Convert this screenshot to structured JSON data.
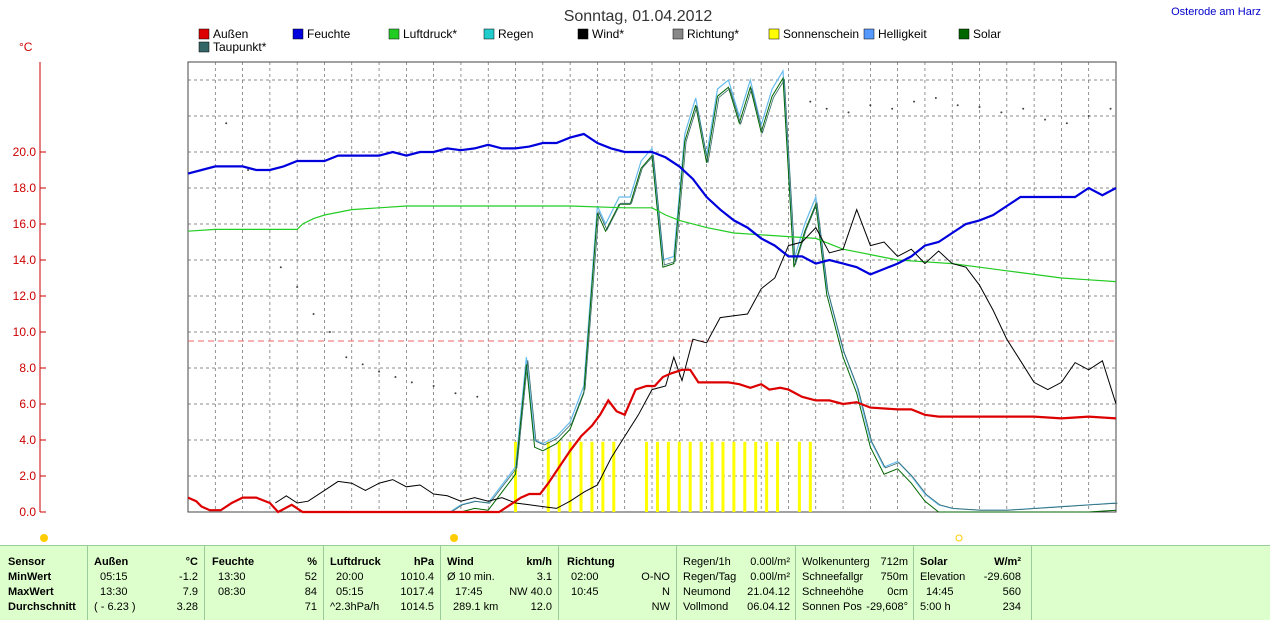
{
  "header": {
    "title": "Sonntag, 01.04.2012",
    "location": "Osterode am Harz"
  },
  "chart_data": {
    "type": "line",
    "title": "Sonntag, 01.04.2012",
    "yunit": "°C",
    "ylim": [
      0,
      25
    ],
    "xlim": [
      0,
      24
    ],
    "yticks": [
      "0.0",
      "2.0",
      "4.0",
      "6.0",
      "8.0",
      "10.0",
      "12.0",
      "14.0",
      "16.0",
      "18.0",
      "20.0"
    ],
    "grid": true,
    "legend_position": "top",
    "threshold_line": 9.5,
    "series": [
      {
        "name": "Außen",
        "color": "#dd0000",
        "points": [
          [
            0,
            0.8
          ],
          [
            0.3,
            0.6
          ],
          [
            0.5,
            0.3
          ],
          [
            0.8,
            0.1
          ],
          [
            1.2,
            0.1
          ],
          [
            1.6,
            0.5
          ],
          [
            2,
            0.8
          ],
          [
            2.5,
            0.8
          ],
          [
            3,
            0.5
          ],
          [
            3.3,
            0
          ],
          [
            3.8,
            0.4
          ],
          [
            4.2,
            0
          ],
          [
            7.5,
            0
          ],
          [
            8,
            0
          ],
          [
            8.5,
            0
          ],
          [
            9,
            0
          ],
          [
            9.5,
            0
          ],
          [
            10,
            0
          ],
          [
            10.5,
            0
          ],
          [
            11,
            0
          ],
          [
            11.4,
            0
          ],
          [
            11.8,
            0.4
          ],
          [
            12.2,
            0.8
          ],
          [
            12.5,
            1
          ],
          [
            12.9,
            1
          ],
          [
            13.2,
            1.6
          ],
          [
            13.6,
            2.5
          ],
          [
            14,
            3.4
          ],
          [
            14.4,
            4.2
          ],
          [
            14.8,
            4.8
          ],
          [
            15.1,
            5.4
          ],
          [
            15.4,
            6.2
          ],
          [
            15.7,
            5.6
          ],
          [
            16,
            5.4
          ],
          [
            16.4,
            6.8
          ],
          [
            16.8,
            7
          ],
          [
            17.1,
            7
          ],
          [
            17.4,
            7.5
          ],
          [
            17.7,
            7.7
          ],
          [
            18.1,
            7.9
          ],
          [
            18.4,
            7.9
          ],
          [
            18.7,
            7.2
          ],
          [
            19.2,
            7.2
          ],
          [
            19.8,
            7.2
          ],
          [
            20.2,
            7.1
          ],
          [
            20.6,
            6.9
          ],
          [
            21,
            7.1
          ],
          [
            21.3,
            6.8
          ],
          [
            21.7,
            6.9
          ],
          [
            22,
            6.8
          ],
          [
            22.5,
            6.4
          ],
          [
            23,
            6.2
          ],
          [
            23.5,
            6.2
          ],
          [
            24,
            6.0
          ]
        ],
        "points2": [
          [
            24,
            6.0
          ],
          [
            24.5,
            6.1
          ],
          [
            25,
            5.8
          ],
          [
            26,
            5.7
          ],
          [
            26.5,
            5.7
          ],
          [
            27,
            5.4
          ],
          [
            27.5,
            5.3
          ],
          [
            28,
            5.3
          ],
          [
            29,
            5.3
          ],
          [
            30,
            5.3
          ],
          [
            31,
            5.3
          ],
          [
            32,
            5.2
          ],
          [
            33,
            5.3
          ],
          [
            34,
            5.2
          ]
        ]
      },
      {
        "name": "Feuchte",
        "color": "#0000dd",
        "points": [
          [
            0,
            18.8
          ],
          [
            0.5,
            19
          ],
          [
            1,
            19.2
          ],
          [
            2,
            19.2
          ],
          [
            2.5,
            19
          ],
          [
            3,
            19
          ],
          [
            3.5,
            19.2
          ],
          [
            4,
            19.5
          ],
          [
            4.5,
            19.5
          ],
          [
            5,
            19.5
          ],
          [
            5.5,
            19.8
          ],
          [
            6,
            19.8
          ],
          [
            6.5,
            19.8
          ],
          [
            7,
            19.8
          ],
          [
            7.5,
            20
          ],
          [
            8,
            19.8
          ],
          [
            8.5,
            20
          ],
          [
            9,
            20
          ],
          [
            9.5,
            20.2
          ],
          [
            10,
            20.1
          ],
          [
            10.5,
            20.2
          ],
          [
            11,
            20.4
          ],
          [
            11.5,
            20.2
          ],
          [
            12,
            20.2
          ],
          [
            12.5,
            20.3
          ],
          [
            13,
            20.5
          ],
          [
            13.5,
            20.5
          ],
          [
            14,
            20.8
          ],
          [
            14.5,
            21
          ],
          [
            15,
            20.5
          ],
          [
            15.5,
            20.2
          ],
          [
            16,
            20
          ],
          [
            16.5,
            20
          ],
          [
            17,
            20
          ],
          [
            17.5,
            19.7
          ],
          [
            18,
            19.2
          ],
          [
            18.5,
            18.5
          ],
          [
            19,
            17.5
          ],
          [
            19.5,
            16.8
          ],
          [
            20,
            16.2
          ],
          [
            20.5,
            15.8
          ],
          [
            21,
            15.2
          ],
          [
            21.5,
            14.8
          ],
          [
            22,
            14.2
          ],
          [
            22.5,
            14.2
          ],
          [
            23,
            13.8
          ],
          [
            23.5,
            14
          ],
          [
            24,
            13.8
          ]
        ],
        "points2": [
          [
            24,
            13.8
          ],
          [
            24.5,
            13.6
          ],
          [
            25,
            13.2
          ],
          [
            25.5,
            13.5
          ],
          [
            26,
            13.8
          ],
          [
            26.5,
            14.2
          ],
          [
            27,
            14.8
          ],
          [
            27.5,
            15
          ],
          [
            28,
            15.5
          ],
          [
            28.5,
            16
          ],
          [
            29,
            16.2
          ],
          [
            29.5,
            16.5
          ],
          [
            30,
            17
          ],
          [
            30.5,
            17.5
          ],
          [
            31,
            17.5
          ],
          [
            32,
            17.5
          ],
          [
            32.5,
            17.5
          ],
          [
            33,
            18
          ],
          [
            33.5,
            17.6
          ],
          [
            34,
            18
          ]
        ]
      },
      {
        "name": "Luftdruck*",
        "color": "#22cc22"
      },
      {
        "name": "Regen",
        "color": "#22cccc"
      },
      {
        "name": "Wind*",
        "color": "#000000"
      },
      {
        "name": "Richtung*",
        "color": "#888888"
      },
      {
        "name": "Sonnenschein",
        "color": "#ffff00"
      },
      {
        "name": "Helligkeit",
        "color": "#5599ff"
      },
      {
        "name": "Solar",
        "color": "#006600"
      },
      {
        "name": "Taupunkt*",
        "color": "#336666"
      }
    ]
  },
  "stats": {
    "sensor": {
      "head": "Sensor",
      "min": "MinWert",
      "max": "MaxWert",
      "avg": "Durchschnitt"
    },
    "aussen": {
      "head": "Außen",
      "unit": "°C",
      "min_t": "05:15",
      "min_v": "-1.2",
      "max_t": "13:30",
      "max_v": "7.9",
      "avg_t": "( - 6.23 )",
      "avg_v": "3.28"
    },
    "feuchte": {
      "head": "Feuchte",
      "unit": "%",
      "min_t": "13:30",
      "min_v": "52",
      "max_t": "08:30",
      "max_v": "84",
      "avg_v": "71"
    },
    "luftdruck": {
      "head": "Luftdruck",
      "unit": "hPa",
      "min_t": "20:00",
      "min_v": "1010.4",
      "max_t": "05:15",
      "max_v": "1017.4",
      "avg_t": "^2.3hPa/h",
      "avg_v": "1014.5"
    },
    "wind": {
      "head": "Wind",
      "unit": "km/h",
      "min_t": "Ø 10 min.",
      "min_v": "3.1",
      "max_t": "17:45",
      "max_v": "NW 40.0",
      "avg_t": "289.1 km",
      "avg_v": "12.0"
    },
    "richtung": {
      "head": "Richtung",
      "min_t": "02:00",
      "min_v": "O-NO",
      "max_t": "10:45",
      "max_v": "N",
      "avg_v": "NW"
    },
    "regen": {
      "r1_l": "Regen/1h",
      "r1_v": "0.00l/m²",
      "r2_l": "Regen/Tag",
      "r2_v": "0.00l/m²",
      "r3_l": "Neumond",
      "r3_v": "21.04.12",
      "r4_l": "Vollmond",
      "r4_v": "06.04.12"
    },
    "wolken": {
      "r1_l": "Wolkenunterg",
      "r1_v": "712m",
      "r2_l": "Schneefallgr",
      "r2_v": "750m",
      "r3_l": "Schneehöhe",
      "r3_v": "0cm",
      "r4_l": "Sonnen Pos",
      "r4_v": "-29,608°"
    },
    "solar": {
      "head": "Solar",
      "unit": "W/m²",
      "r2_l": "Elevation",
      "r2_v": "-29.608",
      "r3_l": "14:45",
      "r3_v": "560",
      "r4_l": "5:00 h",
      "r4_v": "234"
    }
  }
}
